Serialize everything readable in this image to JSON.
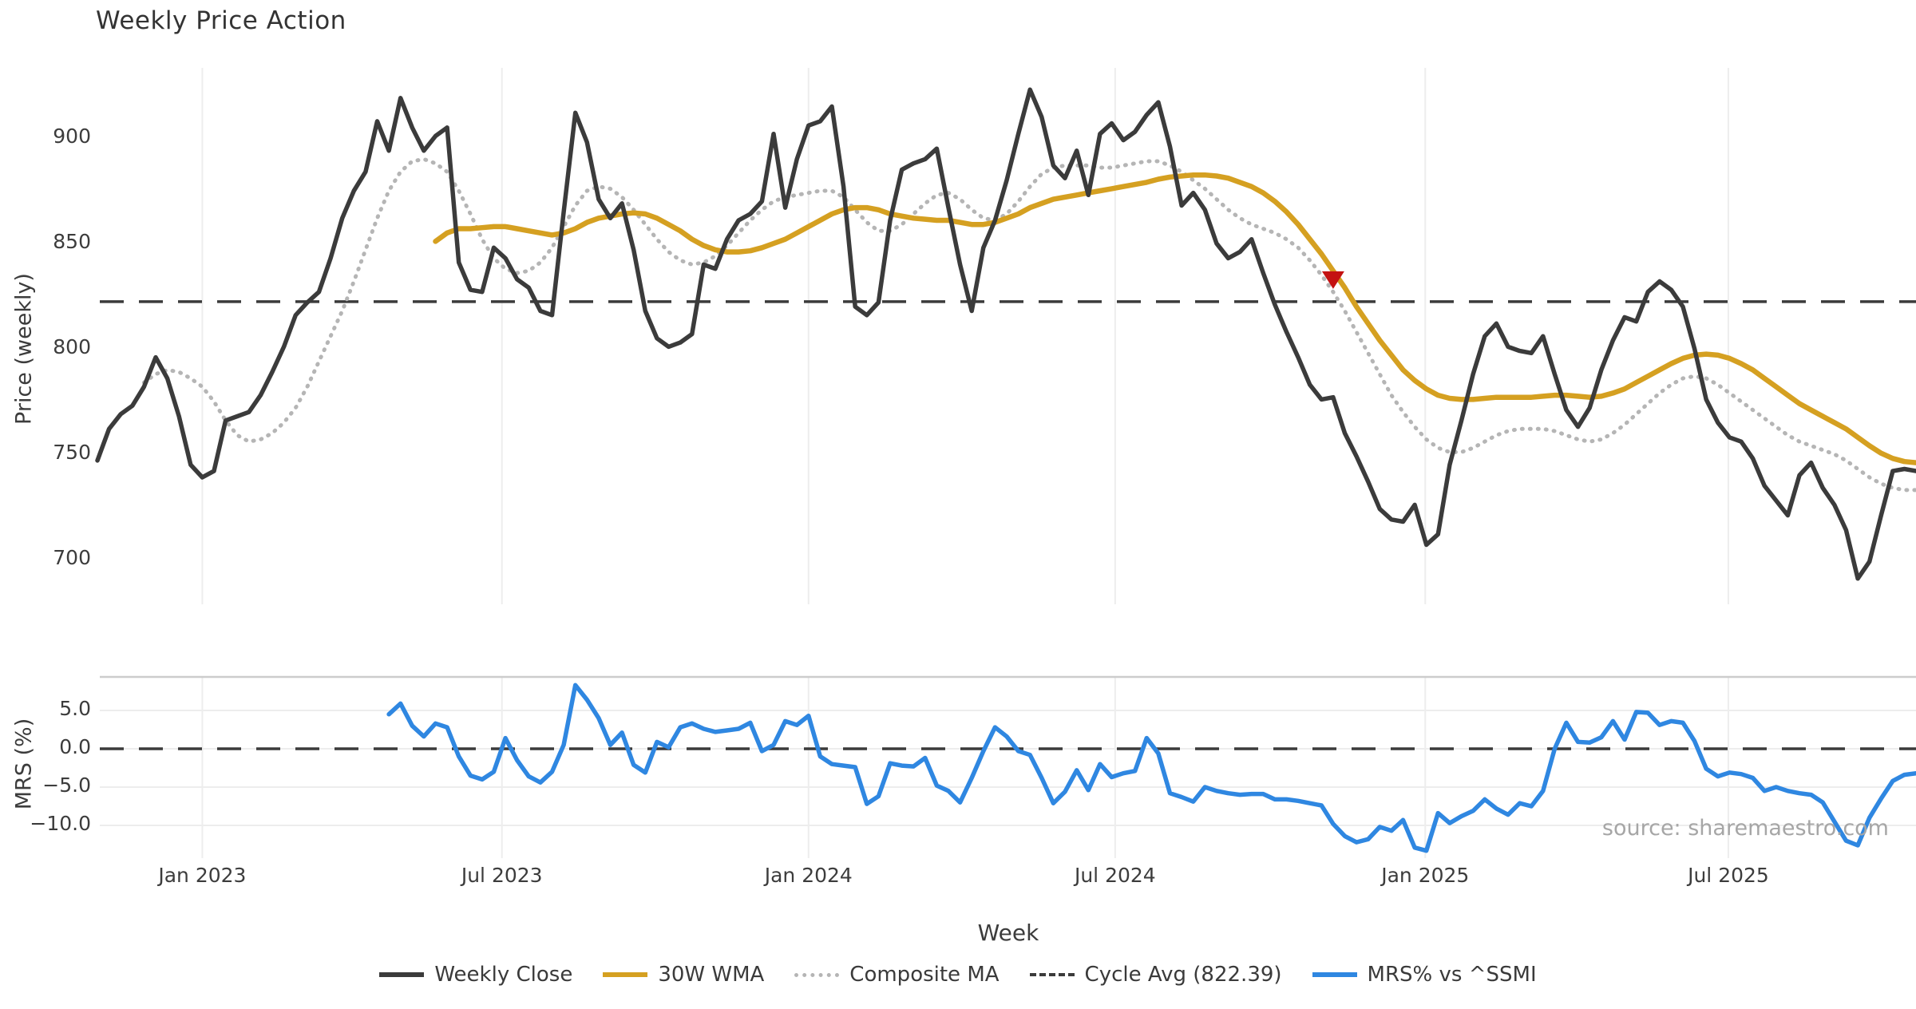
{
  "title": "Weekly Price Action",
  "source": {
    "text": "source: sharemaestro.com"
  },
  "colors": {
    "close": "#3b3b3b",
    "wma": "#d5a021",
    "composite": "#b5b5b5",
    "cycle_avg": "#3b3b3b",
    "mrs": "#2f87e1",
    "marker": "#c41212",
    "grid": "#ededed",
    "panel_border": "#cccccc",
    "background": "#ffffff"
  },
  "axes": {
    "price": {
      "label": "Price (weekly)",
      "ticks": [
        900,
        850,
        800,
        750,
        700
      ]
    },
    "mrs": {
      "label": "MRS (%)",
      "ticks": [
        5.0,
        0.0,
        -5.0,
        -10.0
      ]
    },
    "x": {
      "label": "Week",
      "tick_labels": [
        "Jan 2023",
        "Jul 2023",
        "Jan 2024",
        "Jul 2024",
        "Jan 2025",
        "Jul 2025"
      ],
      "tick_weeks": [
        9,
        34.7,
        61,
        87.3,
        113.9,
        139.9
      ]
    }
  },
  "legend": {
    "items": [
      {
        "label": "Weekly Close",
        "style": "solid",
        "color": "#3b3b3b"
      },
      {
        "label": "30W WMA",
        "style": "solid",
        "color": "#d5a021"
      },
      {
        "label": "Composite MA",
        "style": "dotted",
        "color": "#b5b5b5"
      },
      {
        "label": "Cycle Avg (822.39)",
        "style": "dashed",
        "color": "#3b3b3b"
      },
      {
        "label": "MRS% vs ^SSMI",
        "style": "solid",
        "color": "#2f87e1"
      }
    ]
  },
  "chart_data": [
    {
      "type": "line",
      "panel": "price",
      "title": "Weekly Price Action",
      "xlabel": "Week",
      "ylabel": "Price (weekly)",
      "frequency": "weekly",
      "start_date": "2022-10-31",
      "n_weeks": 157,
      "ylim": [
        679,
        933
      ],
      "yticks": [
        700,
        750,
        800,
        850,
        900
      ],
      "grid": "vertical-only",
      "cycle_avg": 822.39,
      "sell_marker": {
        "week": 106,
        "price": 833
      },
      "series": [
        {
          "name": "Weekly Close",
          "start_week": 0,
          "values": [
            747,
            762,
            769,
            773,
            782,
            796,
            786,
            768,
            745,
            739,
            742,
            766,
            768,
            770,
            778,
            789,
            801,
            816,
            822,
            827,
            843,
            862,
            875,
            884,
            908,
            894,
            919,
            905,
            894,
            901,
            905,
            841,
            828,
            827,
            848,
            843,
            833,
            829,
            818,
            816,
            865,
            912,
            898,
            871,
            862,
            869,
            847,
            818,
            805,
            801,
            803,
            807,
            840,
            838,
            852,
            861,
            864,
            870,
            902,
            867,
            890,
            906,
            908,
            915,
            877,
            820,
            816,
            822,
            861,
            885,
            888,
            890,
            895,
            867,
            840,
            818,
            848,
            861,
            880,
            902,
            923,
            910,
            887,
            881,
            894,
            873,
            902,
            907,
            899,
            903,
            911,
            917,
            896,
            868,
            874,
            866,
            850,
            843,
            846,
            852,
            836,
            821,
            808,
            796,
            783,
            776,
            777,
            760,
            749,
            737,
            724,
            719,
            718,
            726,
            707,
            712,
            745,
            766,
            788,
            806,
            812,
            801,
            799,
            798,
            806,
            788,
            771,
            763,
            772,
            790,
            804,
            815,
            813,
            827,
            832,
            828,
            820,
            800,
            776,
            765,
            758,
            756,
            748,
            735,
            728,
            721,
            740,
            746,
            734,
            726,
            714,
            691,
            699,
            721,
            742,
            743,
            742
          ]
        },
        {
          "name": "30W WMA",
          "start_week": 29,
          "values": [
            851,
            855,
            857,
            857,
            857.5,
            858,
            858,
            857,
            856,
            855,
            854,
            855,
            857,
            860,
            862,
            863,
            864,
            864.5,
            864,
            862,
            859,
            856,
            852,
            849,
            847,
            846,
            846,
            846.5,
            848,
            850,
            852,
            855,
            858,
            861,
            864,
            866,
            867,
            867,
            866,
            864,
            863,
            862,
            861.5,
            861,
            861,
            860,
            859,
            859,
            860,
            862,
            864,
            867,
            869,
            871,
            872,
            873,
            874,
            875,
            876,
            877,
            878,
            879,
            880.5,
            881.5,
            882,
            882.5,
            882.5,
            882,
            881,
            879,
            877,
            874,
            870,
            865,
            859,
            852,
            845,
            837,
            829,
            820,
            812,
            804,
            797,
            790,
            785,
            781,
            778,
            776.5,
            776,
            776,
            776.5,
            777,
            777,
            777,
            777,
            777.5,
            778,
            778,
            777.5,
            777,
            777.5,
            779,
            781,
            784,
            787,
            790,
            793,
            795.5,
            797,
            797.5,
            797,
            795.5,
            793,
            790,
            786,
            782,
            778,
            774,
            771,
            768,
            765,
            762,
            758,
            754,
            750.5,
            748,
            746.5,
            746
          ]
        },
        {
          "name": "Composite MA",
          "start_week": 4,
          "values": [
            784,
            788,
            790,
            789,
            786,
            782,
            775,
            766,
            759,
            756,
            757,
            760,
            765,
            772,
            782,
            794,
            806,
            818,
            832,
            847,
            862,
            875,
            884,
            889,
            890,
            888,
            884,
            875,
            864,
            852,
            843,
            838,
            836,
            837,
            841,
            848,
            858,
            868,
            875,
            877,
            876,
            872,
            866,
            859,
            852,
            846,
            842,
            840,
            841,
            844,
            849,
            855,
            861,
            866,
            870,
            872,
            873,
            874,
            875,
            875,
            872,
            866,
            860,
            856,
            856,
            859,
            864,
            869,
            873,
            874,
            871,
            866,
            862,
            861,
            864,
            870,
            877,
            883,
            886,
            887,
            887,
            887,
            886,
            886,
            887,
            888,
            889,
            889,
            887,
            884,
            880,
            876,
            871,
            866,
            862,
            859,
            857,
            855,
            852,
            848,
            842,
            835,
            827,
            818,
            808,
            798,
            788,
            778,
            770,
            763,
            757,
            753,
            751,
            751,
            753,
            756,
            759,
            761,
            762,
            762,
            762,
            761,
            759,
            757,
            756,
            757,
            760,
            764,
            769,
            774,
            779,
            783,
            786,
            787,
            786,
            783,
            779,
            775,
            771,
            767,
            763,
            759,
            756,
            754,
            752,
            750,
            747,
            743,
            739,
            736,
            734,
            733,
            733
          ]
        }
      ]
    },
    {
      "type": "line",
      "panel": "mrs",
      "ylabel": "MRS (%)",
      "xlabel": "Week",
      "frequency": "weekly",
      "start_date": "2022-10-31",
      "ylim": [
        -14.3,
        9.4
      ],
      "yticks": [
        5.0,
        0.0,
        -5.0,
        -10.0
      ],
      "zero_line_dashed": true,
      "grid": "both",
      "series": [
        {
          "name": "MRS% vs ^SSMI",
          "start_week": 25,
          "values": [
            4.5,
            5.9,
            3.0,
            1.6,
            3.3,
            2.8,
            -1.0,
            -3.5,
            -4.0,
            -3.0,
            1.4,
            -1.5,
            -3.6,
            -4.4,
            -3.0,
            0.5,
            8.3,
            6.4,
            4.0,
            0.5,
            2.1,
            -2.1,
            -3.1,
            0.9,
            0.2,
            2.8,
            3.3,
            2.6,
            2.2,
            2.4,
            2.6,
            3.4,
            -0.3,
            0.5,
            3.6,
            3.1,
            4.3,
            -1.0,
            -2.0,
            -2.2,
            -2.4,
            -7.2,
            -6.2,
            -1.9,
            -2.2,
            -2.3,
            -1.2,
            -4.8,
            -5.5,
            -7.0,
            -3.8,
            -0.3,
            2.8,
            1.6,
            -0.3,
            -0.8,
            -3.8,
            -7.1,
            -5.6,
            -2.8,
            -5.4,
            -2.0,
            -3.7,
            -3.2,
            -2.9,
            1.4,
            -0.6,
            -5.8,
            -6.3,
            -6.9,
            -5.0,
            -5.5,
            -5.8,
            -6.0,
            -5.9,
            -5.9,
            -6.6,
            -6.6,
            -6.8,
            -7.1,
            -7.4,
            -9.8,
            -11.4,
            -12.2,
            -11.8,
            -10.2,
            -10.7,
            -9.3,
            -12.9,
            -13.3,
            -8.4,
            -9.7,
            -8.8,
            -8.1,
            -6.6,
            -7.8,
            -8.6,
            -7.1,
            -7.5,
            -5.5,
            0.0,
            3.4,
            0.9,
            0.8,
            1.5,
            3.6,
            1.2,
            4.8,
            4.7,
            3.1,
            3.6,
            3.4,
            1.0,
            -2.6,
            -3.6,
            -3.1,
            -3.3,
            -3.8,
            -5.5,
            -5.0,
            -5.5,
            -5.8,
            -6.0,
            -7.0,
            -9.5,
            -12.0,
            -12.6,
            -9.0,
            -6.5,
            -4.2,
            -3.4,
            -3.2
          ]
        }
      ]
    }
  ]
}
